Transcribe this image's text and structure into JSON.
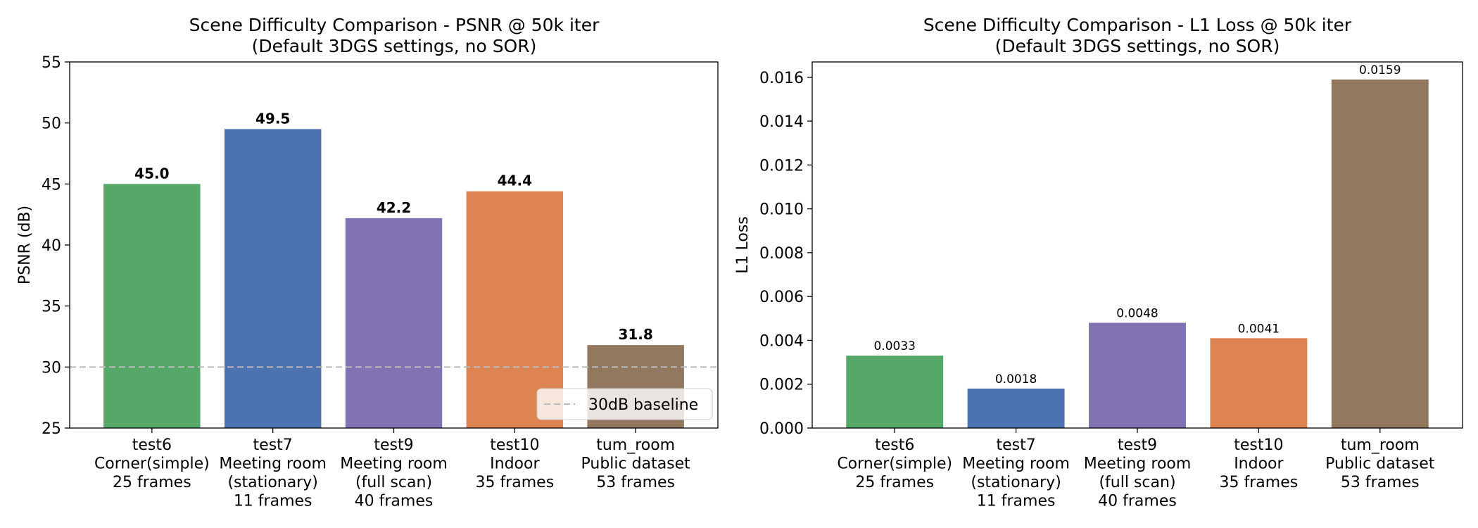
{
  "figure_title": "",
  "legend": {
    "label": "30dB baseline"
  },
  "chart_data": [
    {
      "type": "bar",
      "title": "Scene Difficulty Comparison - PSNR @ 50k iter",
      "subtitle": "(Default 3DGS settings, no SOR)",
      "xlabel": "",
      "ylabel": "PSNR (dB)",
      "ylim": [
        25,
        55
      ],
      "yticks": [
        "25",
        "30",
        "35",
        "40",
        "45",
        "50",
        "55"
      ],
      "grid": false,
      "legend_position": "lower-right",
      "baseline": {
        "value": 30,
        "label": "30dB baseline",
        "color": "#bbbbbb"
      },
      "categories": [
        [
          "test6",
          "Corner(simple)",
          "25 frames"
        ],
        [
          "test7",
          "Meeting room",
          "(stationary)",
          "11 frames"
        ],
        [
          "test9",
          "Meeting room",
          "(full scan)",
          "40 frames"
        ],
        [
          "test10",
          "Indoor",
          "35 frames"
        ],
        [
          "tum_room",
          "Public dataset",
          "53 frames"
        ]
      ],
      "values": [
        45.0,
        49.5,
        42.2,
        44.4,
        31.8
      ],
      "value_labels": [
        "45.0",
        "49.5",
        "42.2",
        "44.4",
        "31.8"
      ],
      "colors": [
        "#55a868",
        "#4c72b0",
        "#8172b3",
        "#dd8452",
        "#937860"
      ]
    },
    {
      "type": "bar",
      "title": "Scene Difficulty Comparison - L1 Loss @ 50k iter",
      "subtitle": "(Default 3DGS settings, no SOR)",
      "xlabel": "",
      "ylabel": "L1 Loss",
      "ylim": [
        0,
        0.0167
      ],
      "yticks": [
        "0.000",
        "0.002",
        "0.004",
        "0.006",
        "0.008",
        "0.010",
        "0.012",
        "0.014",
        "0.016"
      ],
      "grid": false,
      "categories": [
        [
          "test6",
          "Corner(simple)",
          "25 frames"
        ],
        [
          "test7",
          "Meeting room",
          "(stationary)",
          "11 frames"
        ],
        [
          "test9",
          "Meeting room",
          "(full scan)",
          "40 frames"
        ],
        [
          "test10",
          "Indoor",
          "35 frames"
        ],
        [
          "tum_room",
          "Public dataset",
          "53 frames"
        ]
      ],
      "values": [
        0.0033,
        0.0018,
        0.0048,
        0.0041,
        0.0159
      ],
      "value_labels": [
        "0.0033",
        "0.0018",
        "0.0048",
        "0.0041",
        "0.0159"
      ],
      "colors": [
        "#55a868",
        "#4c72b0",
        "#8172b3",
        "#dd8452",
        "#937860"
      ]
    }
  ]
}
